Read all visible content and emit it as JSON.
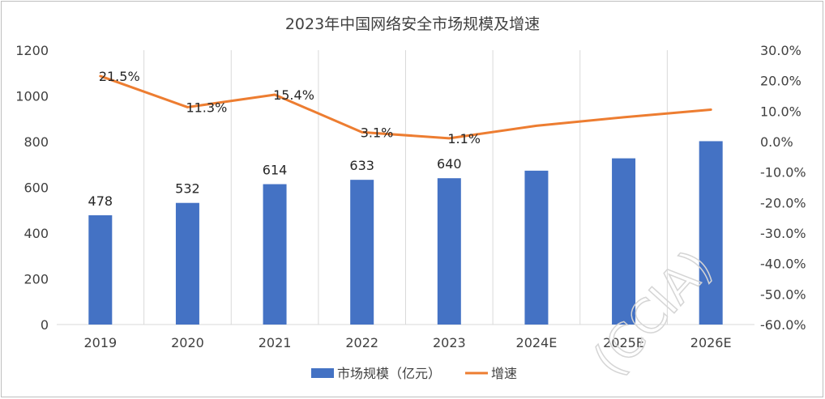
{
  "chart_data": {
    "type": "bar",
    "title": "2023年中国网络安全市场规模及增速",
    "categories": [
      "2019",
      "2020",
      "2021",
      "2022",
      "2023",
      "2024E",
      "2025E",
      "2026E"
    ],
    "series": [
      {
        "name": "市场规模（亿元）",
        "type": "bar",
        "axis": "left",
        "values": [
          478,
          532,
          614,
          633,
          640,
          673,
          727,
          802
        ],
        "labels": [
          "478",
          "532",
          "614",
          "633",
          "640",
          "",
          "",
          ""
        ]
      },
      {
        "name": "增速",
        "type": "line",
        "axis": "right",
        "values": [
          21.5,
          11.3,
          15.4,
          3.1,
          1.1,
          5.2,
          8.0,
          10.5
        ],
        "labels": [
          "21.5%",
          "11.3%",
          "15.4%",
          "3.1%",
          "1.1%",
          "",
          "",
          ""
        ]
      }
    ],
    "y_left": {
      "range": [
        0,
        1200
      ],
      "ticks": [
        "0",
        "200",
        "400",
        "600",
        "800",
        "1000",
        "1200"
      ]
    },
    "y_right": {
      "range": [
        -60,
        30
      ],
      "ticks": [
        "-60.0%",
        "-50.0%",
        "-40.0%",
        "-30.0%",
        "-20.0%",
        "-10.0%",
        "0.0%",
        "10.0%",
        "20.0%",
        "30.0%"
      ]
    },
    "grid": "vertical",
    "legend_position": "bottom",
    "colors": {
      "bar": "#4472C4",
      "line": "#ED7D31",
      "grid": "#d9d9d9",
      "text": "#404040"
    },
    "watermark": "(CCIA)"
  }
}
